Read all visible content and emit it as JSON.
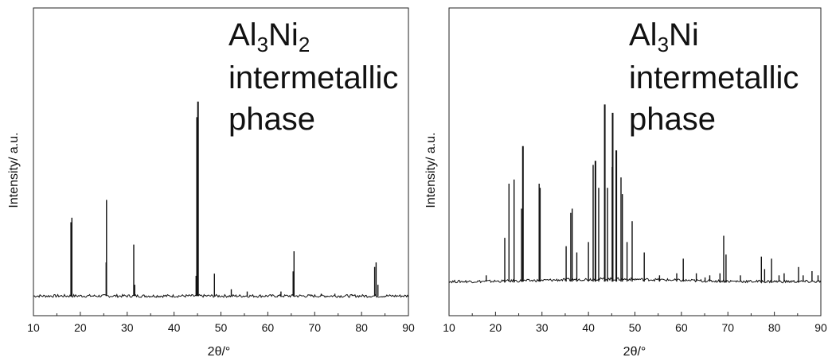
{
  "chart_data": [
    {
      "type": "line",
      "title": "",
      "xlabel": "2θ/°",
      "ylabel": "Intensity/ a.u.",
      "xlim": [
        10,
        90
      ],
      "xticks": [
        10,
        20,
        30,
        40,
        50,
        60,
        70,
        80,
        90
      ],
      "y_ticks_shown": false,
      "grid": false,
      "annotation": {
        "line1_main": "Al",
        "line1_sub1": "3",
        "line1_mid": "Ni",
        "line1_sub2": "2",
        "line2": "intermetallic",
        "line3": "phase"
      },
      "baseline": 1.0,
      "peaks": [
        {
          "x": 18.2,
          "y": 36
        },
        {
          "x": 18.0,
          "y": 34
        },
        {
          "x": 25.6,
          "y": 44
        },
        {
          "x": 25.5,
          "y": 16
        },
        {
          "x": 31.4,
          "y": 24
        },
        {
          "x": 31.6,
          "y": 6
        },
        {
          "x": 44.9,
          "y": 81
        },
        {
          "x": 45.1,
          "y": 88
        },
        {
          "x": 44.7,
          "y": 10
        },
        {
          "x": 48.6,
          "y": 11
        },
        {
          "x": 52.2,
          "y": 4
        },
        {
          "x": 55.6,
          "y": 3
        },
        {
          "x": 62.8,
          "y": 3
        },
        {
          "x": 65.6,
          "y": 21
        },
        {
          "x": 65.4,
          "y": 12
        },
        {
          "x": 71.4,
          "y": 2
        },
        {
          "x": 74.3,
          "y": 2
        },
        {
          "x": 78.0,
          "y": 1.5
        },
        {
          "x": 82.8,
          "y": 14
        },
        {
          "x": 83.1,
          "y": 16
        },
        {
          "x": 83.5,
          "y": 6
        }
      ]
    },
    {
      "type": "line",
      "title": "",
      "xlabel": "2θ/°",
      "ylabel": "Intensity/ a.u.",
      "xlim": [
        10,
        90
      ],
      "xticks": [
        10,
        20,
        30,
        40,
        50,
        60,
        70,
        80,
        90
      ],
      "y_ticks_shown": false,
      "grid": false,
      "annotation": {
        "line1_main": "Al",
        "line1_sub1": "3",
        "line1_mid": "Ni",
        "line1_sub2": "",
        "line2": "intermetallic",
        "line3": "phase"
      },
      "baseline": 3.0,
      "peaks": [
        {
          "x": 18.0,
          "y": 6
        },
        {
          "x": 22.0,
          "y": 24
        },
        {
          "x": 22.9,
          "y": 50
        },
        {
          "x": 24.0,
          "y": 52
        },
        {
          "x": 25.6,
          "y": 38
        },
        {
          "x": 25.9,
          "y": 68
        },
        {
          "x": 29.4,
          "y": 50
        },
        {
          "x": 29.6,
          "y": 48
        },
        {
          "x": 35.2,
          "y": 20
        },
        {
          "x": 36.2,
          "y": 36
        },
        {
          "x": 36.5,
          "y": 38
        },
        {
          "x": 37.5,
          "y": 17
        },
        {
          "x": 40.0,
          "y": 22
        },
        {
          "x": 41.0,
          "y": 59
        },
        {
          "x": 41.5,
          "y": 61
        },
        {
          "x": 42.2,
          "y": 48
        },
        {
          "x": 43.5,
          "y": 88
        },
        {
          "x": 44.1,
          "y": 48
        },
        {
          "x": 45.1,
          "y": 58
        },
        {
          "x": 45.2,
          "y": 84
        },
        {
          "x": 46.0,
          "y": 66
        },
        {
          "x": 47.0,
          "y": 53
        },
        {
          "x": 47.3,
          "y": 45
        },
        {
          "x": 48.3,
          "y": 22
        },
        {
          "x": 49.4,
          "y": 32
        },
        {
          "x": 52.0,
          "y": 17
        },
        {
          "x": 55.3,
          "y": 6
        },
        {
          "x": 59.0,
          "y": 7
        },
        {
          "x": 60.4,
          "y": 14
        },
        {
          "x": 63.2,
          "y": 7
        },
        {
          "x": 65.1,
          "y": 5
        },
        {
          "x": 66.1,
          "y": 6
        },
        {
          "x": 68.3,
          "y": 7
        },
        {
          "x": 69.1,
          "y": 25
        },
        {
          "x": 69.6,
          "y": 16
        },
        {
          "x": 72.7,
          "y": 6
        },
        {
          "x": 77.2,
          "y": 15
        },
        {
          "x": 77.9,
          "y": 9
        },
        {
          "x": 79.4,
          "y": 14
        },
        {
          "x": 81.0,
          "y": 6
        },
        {
          "x": 82.1,
          "y": 7
        },
        {
          "x": 85.2,
          "y": 10
        },
        {
          "x": 86.2,
          "y": 6
        },
        {
          "x": 88.1,
          "y": 8
        },
        {
          "x": 89.4,
          "y": 6
        }
      ]
    }
  ]
}
